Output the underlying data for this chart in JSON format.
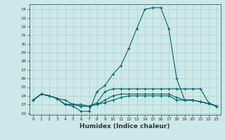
{
  "xlabel": "Humidex (Indice chaleur)",
  "bg_color": "#cce8e8",
  "grid_color": "#b0d0d0",
  "line_color": "#006666",
  "ylim": [
    21.8,
    34.6
  ],
  "yticks": [
    22,
    23,
    24,
    25,
    26,
    27,
    28,
    29,
    30,
    31,
    32,
    33,
    34
  ],
  "xlim": [
    -0.5,
    23.5
  ],
  "xticks": [
    0,
    1,
    2,
    3,
    4,
    5,
    6,
    7,
    8,
    9,
    10,
    11,
    12,
    13,
    14,
    15,
    16,
    17,
    18,
    19,
    20,
    21,
    22,
    23
  ],
  "series": [
    [
      23.5,
      24.2,
      24.0,
      23.7,
      23.0,
      22.8,
      22.2,
      22.2,
      24.5,
      25.2,
      26.5,
      27.5,
      29.5,
      31.8,
      34.0,
      34.2,
      34.2,
      31.8,
      26.0,
      23.5,
      23.5,
      23.3,
      23.1,
      22.8
    ],
    [
      23.5,
      24.2,
      24.0,
      23.7,
      23.0,
      23.0,
      22.8,
      22.8,
      23.2,
      24.5,
      24.8,
      24.8,
      24.8,
      24.8,
      24.8,
      24.8,
      24.8,
      24.8,
      24.8,
      24.8,
      24.8,
      24.8,
      23.2,
      22.8
    ],
    [
      23.5,
      24.2,
      24.0,
      23.7,
      23.5,
      23.0,
      23.0,
      22.8,
      23.0,
      23.5,
      24.0,
      24.2,
      24.2,
      24.2,
      24.2,
      24.2,
      24.2,
      24.2,
      23.8,
      23.5,
      23.5,
      23.3,
      23.1,
      22.8
    ],
    [
      23.5,
      24.2,
      24.0,
      23.7,
      23.0,
      23.0,
      22.8,
      22.8,
      23.0,
      23.2,
      23.5,
      23.8,
      24.0,
      24.0,
      24.0,
      24.0,
      24.0,
      24.0,
      23.5,
      23.5,
      23.5,
      23.3,
      23.1,
      22.8
    ]
  ]
}
